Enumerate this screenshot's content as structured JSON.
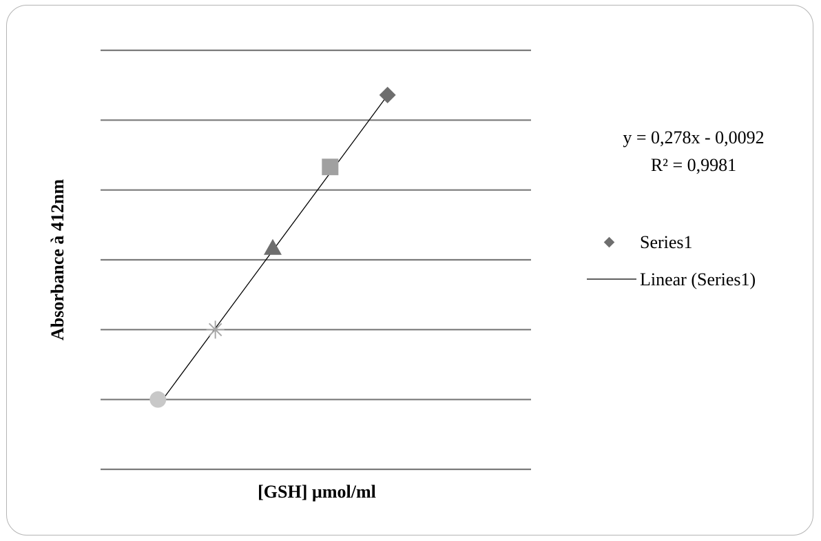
{
  "chart_data": {
    "type": "scatter",
    "title": "",
    "xlabel": "[GSH] µmol/ml",
    "ylabel": "Absorbance à 412nm",
    "grid": true,
    "legend_position": "right",
    "x": [
      0.0,
      0.4,
      0.8,
      1.2,
      1.6
    ],
    "y": [
      0.0,
      0.1,
      0.217,
      0.333,
      0.436
    ],
    "xlim": [
      -0.4,
      2.6
    ],
    "ylim": [
      -0.1,
      0.5
    ],
    "ygrid_values": [
      -0.1,
      0.0,
      0.1,
      0.2,
      0.3,
      0.4,
      0.5
    ],
    "marker_shapes": [
      "circle",
      "star",
      "triangle",
      "square",
      "diamond"
    ],
    "marker_colors": [
      "#c8c8c8",
      "#a8a8a8",
      "#6e6e6e",
      "#a0a0a0",
      "#6e6e6e"
    ],
    "series": [
      {
        "name": "Series1",
        "marker": "diamond",
        "color": "#6e6e6e"
      }
    ],
    "trendline": {
      "name": "Linear (Series1)",
      "slope": 0.278,
      "intercept": -0.0092,
      "x_range": [
        0.0,
        1.6
      ],
      "equation": "y = 0,278x - 0,0092",
      "r_squared": "R² = 0,9981",
      "color": "#000000"
    },
    "gridline_color": "#7a7a7a"
  }
}
